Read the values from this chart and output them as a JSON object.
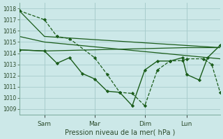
{
  "bg_color": "#cce8e8",
  "grid_color": "#a8cccc",
  "line_color": "#1a5c1a",
  "title": "Pression niveau de la mer( hPa )",
  "ylim": [
    1008.5,
    1018.5
  ],
  "yticks": [
    1009,
    1010,
    1011,
    1012,
    1013,
    1014,
    1015,
    1016,
    1017,
    1018
  ],
  "xlim": [
    0,
    96
  ],
  "xtick_positions": [
    12,
    36,
    60,
    80
  ],
  "xtick_labels": [
    "Sam",
    "Mar",
    "Dim",
    "Lun"
  ],
  "series_smooth1": {
    "x": [
      0,
      12,
      96
    ],
    "y": [
      1017.8,
      1015.5,
      1014.5
    ]
  },
  "series_smooth2": {
    "x": [
      0,
      12,
      96
    ],
    "y": [
      1015.5,
      1015.0,
      1013.5
    ]
  },
  "series_smooth3": {
    "x": [
      0,
      12,
      80,
      96
    ],
    "y": [
      1014.3,
      1014.2,
      1014.5,
      1014.5
    ]
  },
  "series_dashed": {
    "x": [
      0,
      12,
      18,
      24,
      36,
      42,
      48,
      54,
      60,
      66,
      72,
      78,
      80,
      88,
      92,
      96
    ],
    "y": [
      1017.8,
      1017.0,
      1015.5,
      1015.3,
      1013.6,
      1012.1,
      1010.5,
      1010.4,
      1009.3,
      1012.5,
      1013.3,
      1013.35,
      1013.5,
      1013.5,
      1013.0,
      1010.5
    ]
  },
  "series_solid": {
    "x": [
      0,
      12,
      18,
      24,
      30,
      36,
      42,
      48,
      54,
      60,
      66,
      72,
      78,
      80,
      86,
      90,
      96
    ],
    "y": [
      1014.3,
      1014.2,
      1013.1,
      1013.6,
      1012.2,
      1011.7,
      1010.6,
      1010.5,
      1009.3,
      1012.5,
      1013.3,
      1013.3,
      1013.6,
      1012.1,
      1011.6,
      1013.6,
      1014.7
    ]
  }
}
